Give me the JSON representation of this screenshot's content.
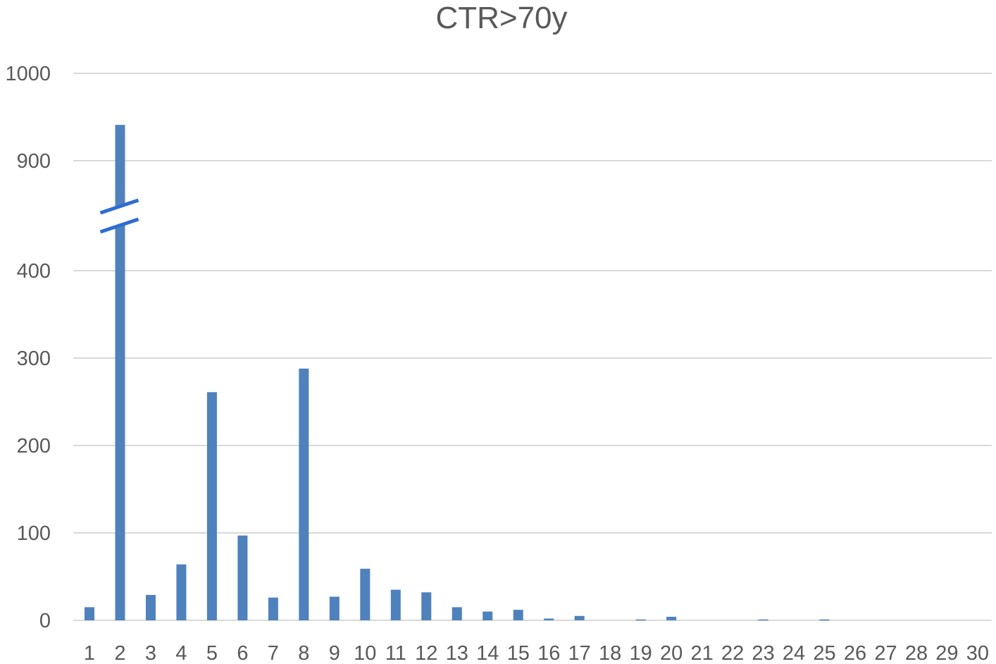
{
  "chart_data": {
    "type": "bar",
    "title": "CTR>70y",
    "xlabel": "",
    "ylabel": "",
    "categories": [
      "1",
      "2",
      "3",
      "4",
      "5",
      "6",
      "7",
      "8",
      "9",
      "10",
      "11",
      "12",
      "13",
      "14",
      "15",
      "16",
      "17",
      "18",
      "19",
      "20",
      "21",
      "22",
      "23",
      "24",
      "25",
      "26",
      "27",
      "28",
      "29",
      "30"
    ],
    "values": [
      15,
      941,
      29,
      64,
      261,
      97,
      26,
      288,
      27,
      59,
      35,
      32,
      15,
      10,
      12,
      2,
      5,
      0,
      1,
      4,
      0,
      0,
      1,
      0,
      1,
      0,
      0,
      0,
      0,
      0
    ],
    "y_ticks": [
      "0",
      "100",
      "200",
      "300",
      "400",
      "900",
      "1000"
    ],
    "ylim": [
      0,
      1000
    ],
    "axis_break": [
      450,
      850
    ],
    "grid": true,
    "legend": "none",
    "colors": {
      "bar": "#4f81bd",
      "grid": "#d9d9d9",
      "text": "#595959",
      "break_mark": "#2e6dd1"
    }
  }
}
